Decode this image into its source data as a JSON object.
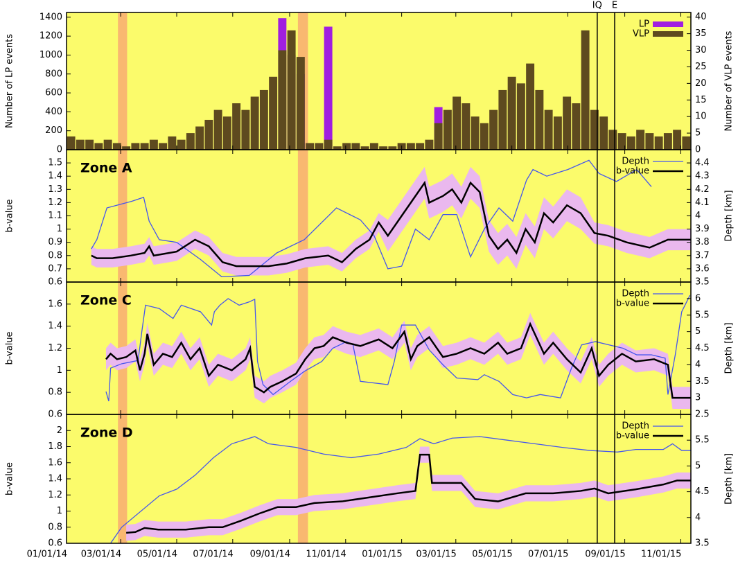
{
  "chart_data": [
    {
      "type": "bar",
      "ylabel": "Number of LP events",
      "y2label": "Number of VLP events",
      "legend": "upper right",
      "ylim": [
        0,
        1450
      ],
      "yticks": [
        0,
        200,
        400,
        600,
        800,
        1000,
        1200,
        1400
      ],
      "y2lim": [
        0,
        41.4
      ],
      "y2ticks": [
        0,
        5,
        10,
        15,
        20,
        25,
        30,
        35,
        40
      ],
      "x": [
        5,
        15,
        25,
        35,
        45,
        55,
        65,
        75,
        85,
        95,
        105,
        115,
        125,
        135,
        145,
        155,
        165,
        175,
        185,
        195,
        205,
        215,
        225,
        235,
        245,
        255,
        265,
        275,
        285,
        295,
        305,
        315,
        325,
        335,
        345,
        355,
        365,
        375,
        385,
        395,
        405,
        415,
        425,
        435,
        445,
        455,
        465,
        475,
        485,
        495,
        505,
        515,
        525,
        535,
        545,
        555,
        565,
        575,
        585,
        595,
        605,
        615,
        625,
        635,
        645,
        655,
        665,
        675
      ],
      "series": [
        {
          "name": "LP",
          "color": "#a01ee0",
          "values": [
            0,
            0,
            0,
            0,
            0,
            0,
            0,
            0,
            0,
            0,
            0,
            0,
            0,
            0,
            0,
            0,
            0,
            0,
            0,
            0,
            0,
            0,
            0,
            1390,
            1000,
            800,
            0,
            0,
            1300,
            0,
            0,
            0,
            0,
            0,
            0,
            0,
            0,
            0,
            0,
            0,
            450,
            0,
            0,
            0,
            0,
            0,
            0,
            0,
            0,
            0,
            0,
            0,
            0,
            0,
            0,
            0,
            0,
            0,
            0,
            0,
            0,
            0,
            0,
            0,
            0,
            0,
            0,
            0
          ]
        },
        {
          "name": "VLP",
          "color": "#5e4a1f",
          "axis": "y2",
          "values": [
            4,
            3,
            3,
            2,
            3,
            2,
            1,
            2,
            2,
            3,
            2,
            4,
            3,
            5,
            7,
            9,
            12,
            10,
            14,
            12,
            16,
            18,
            22,
            30,
            36,
            28,
            2,
            2,
            3,
            1,
            2,
            2,
            1,
            2,
            1,
            1,
            2,
            2,
            2,
            3,
            8,
            12,
            16,
            14,
            10,
            8,
            12,
            18,
            22,
            20,
            26,
            18,
            12,
            10,
            16,
            14,
            36,
            12,
            10,
            6,
            5,
            4,
            6,
            5,
            4,
            5,
            6,
            4
          ]
        }
      ]
    },
    {
      "type": "line",
      "label": "Zone A",
      "ylabel": "b-value",
      "y2label": "Depth [km]",
      "legend": "upper right",
      "ylim": [
        0.6,
        1.6
      ],
      "yticks": [
        0.6,
        0.7,
        0.8,
        0.9,
        1,
        1.1,
        1.2,
        1.3,
        1.4,
        1.5
      ],
      "y2lim": [
        3.5,
        4.5
      ],
      "y2ticks": [
        3.5,
        3.6,
        3.7,
        3.8,
        3.9,
        4,
        4.1,
        4.2,
        4.3,
        4.4
      ],
      "series": [
        {
          "name": "Depth",
          "color": "#4455ee",
          "axis": "y2",
          "x": [
            27,
            33,
            44,
            71,
            84,
            90,
            101,
            120,
            146,
            169,
            199,
            229,
            259,
            294,
            320,
            335,
            350,
            365,
            380,
            395,
            410,
            425,
            440,
            455,
            471,
            486,
            501,
            508,
            523,
            546,
            569,
            580,
            599,
            621,
            637
          ],
          "values": [
            3.75,
            3.82,
            4.06,
            4.11,
            4.14,
            3.96,
            3.82,
            3.8,
            3.67,
            3.54,
            3.55,
            3.72,
            3.82,
            4.06,
            3.97,
            3.85,
            3.6,
            3.62,
            3.9,
            3.82,
            4.01,
            4.01,
            3.69,
            3.9,
            4.06,
            3.96,
            4.27,
            4.35,
            4.3,
            4.35,
            4.42,
            4.32,
            4.26,
            4.35,
            4.22
          ]
        },
        {
          "name": "b-value",
          "color": "#000000",
          "error_color": "#eab8ee",
          "x": [
            27,
            33,
            50,
            70,
            85,
            90,
            95,
            120,
            140,
            155,
            170,
            185,
            220,
            240,
            260,
            285,
            300,
            315,
            330,
            340,
            350,
            365,
            380,
            390,
            395,
            410,
            420,
            430,
            440,
            450,
            460,
            470,
            480,
            490,
            500,
            510,
            520,
            530,
            545,
            560,
            575,
            590,
            610,
            635,
            655,
            680
          ],
          "values": [
            0.8,
            0.78,
            0.78,
            0.8,
            0.82,
            0.87,
            0.8,
            0.83,
            0.92,
            0.87,
            0.75,
            0.72,
            0.72,
            0.74,
            0.78,
            0.8,
            0.75,
            0.85,
            0.92,
            1.05,
            0.95,
            1.1,
            1.25,
            1.35,
            1.2,
            1.25,
            1.3,
            1.2,
            1.35,
            1.28,
            0.95,
            0.85,
            0.92,
            0.82,
            1,
            0.9,
            1.12,
            1.05,
            1.18,
            1.12,
            0.97,
            0.95,
            0.9,
            0.86,
            0.92,
            0.92
          ],
          "errors": [
            0.07,
            0.07,
            0.07,
            0.07,
            0.07,
            0.07,
            0.07,
            0.07,
            0.07,
            0.07,
            0.07,
            0.07,
            0.07,
            0.07,
            0.07,
            0.07,
            0.07,
            0.07,
            0.07,
            0.07,
            0.12,
            0.12,
            0.12,
            0.12,
            0.12,
            0.12,
            0.12,
            0.12,
            0.12,
            0.12,
            0.12,
            0.12,
            0.12,
            0.12,
            0.12,
            0.12,
            0.12,
            0.12,
            0.12,
            0.12,
            0.08,
            0.08,
            0.08,
            0.08,
            0.08,
            0.08
          ]
        }
      ]
    },
    {
      "type": "line",
      "label": "Zone C",
      "ylabel": "b-value",
      "y2label": "Depth [km]",
      "legend": "upper right",
      "ylim": [
        0.6,
        1.8
      ],
      "yticks": [
        0.6,
        0.8,
        1,
        1.2,
        1.4,
        1.6
      ],
      "y2lim": [
        2.5,
        6.5
      ],
      "y2ticks": [
        2.5,
        3,
        3.5,
        4,
        4.5,
        5,
        5.5,
        6
      ],
      "series": [
        {
          "name": "Depth",
          "color": "#4455ee",
          "axis": "y2",
          "x": [
            43,
            46,
            48,
            60,
            78,
            82,
            86,
            101,
            116,
            125,
            146,
            158,
            161,
            167,
            176,
            188,
            199,
            205,
            208,
            214,
            225,
            244,
            259,
            278,
            290,
            305,
            312,
            320,
            350,
            357,
            365,
            380,
            395,
            410,
            425,
            448,
            455,
            471,
            486,
            501,
            516,
            538,
            550,
            561,
            576,
            591,
            606,
            621,
            637,
            652,
            655,
            663,
            670,
            679
          ],
          "values": [
            3.19,
            2.9,
            3.9,
            4.03,
            4.13,
            5,
            5.8,
            5.7,
            5.4,
            5.8,
            5.6,
            5.2,
            5.6,
            5.8,
            6,
            5.8,
            5.9,
            5.98,
            4.1,
            3.4,
            3.1,
            3.5,
            3.8,
            4.1,
            4.5,
            4.7,
            4.6,
            3.5,
            3.4,
            4.1,
            5.2,
            5.2,
            4.45,
            4,
            3.6,
            3.55,
            3.7,
            3.5,
            3.1,
            3,
            3.1,
            3,
            3.9,
            4.6,
            4.7,
            4.6,
            4.5,
            4.3,
            4.3,
            4.2,
            3.1,
            4.3,
            5.6,
            6.1
          ]
        },
        {
          "name": "b-value",
          "color": "#000000",
          "error_color": "#eab8ee",
          "x": [
            43,
            48,
            55,
            65,
            75,
            80,
            85,
            88,
            95,
            105,
            115,
            125,
            135,
            145,
            155,
            165,
            180,
            195,
            200,
            205,
            215,
            222,
            235,
            250,
            260,
            270,
            280,
            290,
            305,
            320,
            340,
            355,
            368,
            375,
            382,
            395,
            410,
            425,
            440,
            455,
            470,
            480,
            495,
            505,
            520,
            530,
            545,
            560,
            572,
            580,
            590,
            605,
            620,
            640,
            655,
            660,
            670,
            680
          ],
          "values": [
            1.1,
            1.15,
            1.1,
            1.12,
            1.18,
            1,
            1.15,
            1.33,
            1.05,
            1.15,
            1.12,
            1.25,
            1.1,
            1.2,
            0.95,
            1.05,
            1,
            1.1,
            1.2,
            0.85,
            0.8,
            0.85,
            0.9,
            0.97,
            1.1,
            1.2,
            1.22,
            1.3,
            1.25,
            1.22,
            1.28,
            1.2,
            1.35,
            1.1,
            1.22,
            1.3,
            1.12,
            1.15,
            1.2,
            1.15,
            1.25,
            1.15,
            1.2,
            1.42,
            1.15,
            1.25,
            1.1,
            0.98,
            1.2,
            0.95,
            1.05,
            1.15,
            1.08,
            1.1,
            1.05,
            0.75,
            0.75,
            0.75
          ],
          "errors": [
            0.1,
            0.1,
            0.1,
            0.1,
            0.1,
            0.1,
            0.1,
            0.1,
            0.1,
            0.1,
            0.1,
            0.1,
            0.1,
            0.1,
            0.1,
            0.1,
            0.1,
            0.1,
            0.1,
            0.1,
            0.1,
            0.1,
            0.1,
            0.1,
            0.1,
            0.1,
            0.1,
            0.1,
            0.1,
            0.1,
            0.1,
            0.1,
            0.1,
            0.1,
            0.1,
            0.1,
            0.1,
            0.1,
            0.1,
            0.1,
            0.1,
            0.1,
            0.1,
            0.1,
            0.1,
            0.1,
            0.1,
            0.1,
            0.1,
            0.1,
            0.1,
            0.1,
            0.1,
            0.1,
            0.1,
            0.1,
            0.1,
            0.1
          ]
        }
      ]
    },
    {
      "type": "line",
      "label": "Zone D",
      "ylabel": "b-value",
      "y2label": "Depth [km]",
      "legend": "upper right",
      "ylim": [
        0.6,
        2.2
      ],
      "yticks": [
        0.6,
        0.8,
        1,
        1.2,
        1.4,
        1.6,
        1.8,
        2
      ],
      "y2lim": [
        3.5,
        6
      ],
      "y2ticks": [
        3.5,
        4,
        4.5,
        5,
        5.5
      ],
      "xlim": [
        0,
        680
      ],
      "xticks": [
        {
          "value": 0,
          "label": "01/01/14"
        },
        {
          "value": 59,
          "label": "03/01/14"
        },
        {
          "value": 120,
          "label": "05/01/14"
        },
        {
          "value": 181,
          "label": "07/01/14"
        },
        {
          "value": 243,
          "label": "09/01/14"
        },
        {
          "value": 304,
          "label": "11/01/14"
        },
        {
          "value": 365,
          "label": "01/01/15"
        },
        {
          "value": 424,
          "label": "03/01/15"
        },
        {
          "value": 485,
          "label": "05/01/15"
        },
        {
          "value": 546,
          "label": "07/01/15"
        },
        {
          "value": 608,
          "label": "09/01/15"
        },
        {
          "value": 669,
          "label": "11/01/15"
        }
      ],
      "series": [
        {
          "name": "Depth",
          "color": "#4455ee",
          "axis": "y2",
          "x": [
            48,
            60,
            101,
            120,
            140,
            160,
            180,
            205,
            220,
            250,
            280,
            310,
            340,
            370,
            385,
            400,
            420,
            450,
            480,
            510,
            540,
            570,
            600,
            620,
            650,
            660,
            670,
            680
          ],
          "values": [
            3.5,
            3.81,
            4.42,
            4.55,
            4.82,
            5.16,
            5.43,
            5.57,
            5.43,
            5.36,
            5.23,
            5.16,
            5.23,
            5.36,
            5.53,
            5.43,
            5.54,
            5.57,
            5.5,
            5.43,
            5.36,
            5.3,
            5.27,
            5.32,
            5.32,
            5.43,
            5.3,
            5.3
          ]
        },
        {
          "name": "b-value",
          "color": "#000000",
          "error_color": "#eab8ee",
          "x": [
            65,
            75,
            85,
            100,
            130,
            155,
            170,
            190,
            210,
            230,
            250,
            270,
            300,
            330,
            360,
            380,
            385,
            395,
            398,
            410,
            430,
            445,
            470,
            500,
            530,
            560,
            575,
            590,
            620,
            650,
            665,
            680
          ],
          "values": [
            0.73,
            0.74,
            0.79,
            0.77,
            0.77,
            0.8,
            0.8,
            0.88,
            0.97,
            1.05,
            1.05,
            1.1,
            1.12,
            1.17,
            1.22,
            1.25,
            1.7,
            1.7,
            1.35,
            1.35,
            1.35,
            1.15,
            1.12,
            1.22,
            1.22,
            1.25,
            1.28,
            1.22,
            1.27,
            1.33,
            1.38,
            1.38
          ],
          "errors": [
            0.1,
            0.1,
            0.1,
            0.1,
            0.1,
            0.1,
            0.1,
            0.1,
            0.1,
            0.1,
            0.1,
            0.1,
            0.1,
            0.1,
            0.1,
            0.1,
            0.1,
            0.1,
            0.1,
            0.1,
            0.1,
            0.1,
            0.1,
            0.1,
            0.1,
            0.1,
            0.1,
            0.1,
            0.1,
            0.1,
            0.1,
            0.1
          ]
        }
      ]
    }
  ],
  "spans": [
    [
      56,
      66
    ],
    [
      252,
      263
    ]
  ],
  "span_color": "#f9b870",
  "events": [
    {
      "label": "IQ",
      "x": 578
    },
    {
      "label": "E",
      "x": 597
    }
  ]
}
